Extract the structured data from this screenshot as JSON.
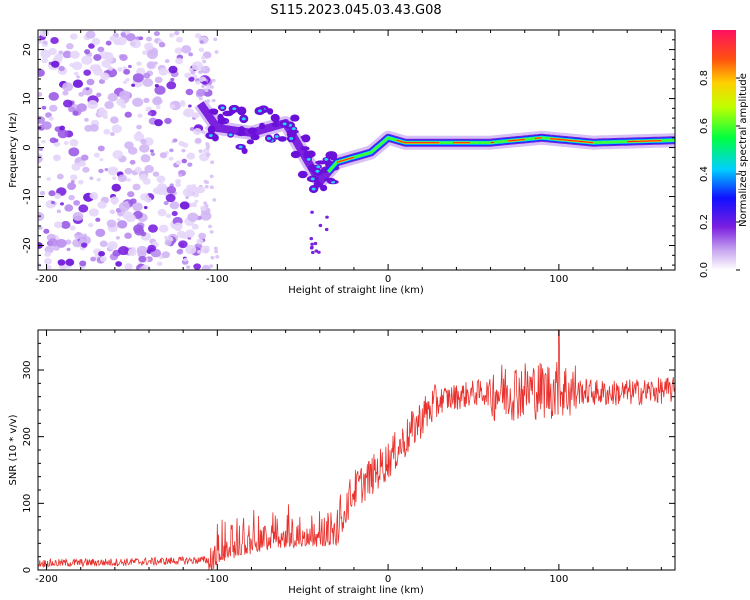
{
  "figure_title": "S115.2023.045.03.43.G08",
  "colors": {
    "snr_line": "#e8302c",
    "axis": "#000000",
    "spec_low": "#6a1be0",
    "spec_high": "#ff2020"
  },
  "chart_data": [
    {
      "type": "heatmap",
      "title": "S115.2023.045.03.43.G08",
      "xlabel": "Height of straight line (km)",
      "ylabel": "Frequency (Hz)",
      "xlim": [
        -205,
        168
      ],
      "ylim": [
        -25,
        24
      ],
      "x_ticks": [
        -200,
        -100,
        0,
        100
      ],
      "y_ticks": [
        -20,
        -10,
        0,
        10,
        20
      ],
      "colorbar": {
        "label": "Normalized spectral amplitude",
        "range": [
          0,
          1
        ],
        "ticks": [
          0.0,
          0.2,
          0.4,
          0.6,
          0.8
        ],
        "tick_labels": [
          "0.0",
          "0.2",
          "0.4",
          "0.6",
          "0.8"
        ]
      },
      "ridge": {
        "description_points_height_km": [
          -110,
          -100,
          -80,
          -60,
          -40,
          -30,
          -20,
          -10,
          0,
          10,
          30,
          60,
          90,
          120,
          168
        ],
        "frequency_hz": [
          9,
          4,
          3,
          5,
          -7,
          -3,
          -2,
          -1,
          2,
          1,
          1,
          1,
          2,
          1,
          1.5
        ]
      }
    },
    {
      "type": "line",
      "xlabel": "Height of straight line (km)",
      "ylabel": "SNR (10 * v/v)",
      "xlim": [
        -205,
        168
      ],
      "ylim": [
        0,
        360
      ],
      "x_ticks": [
        -200,
        -100,
        0,
        100
      ],
      "y_ticks": [
        0,
        100,
        200,
        300
      ],
      "series": [
        {
          "name": "SNR",
          "x": [
            -205,
            -150,
            -105,
            -95,
            -70,
            -50,
            -30,
            -25,
            -20,
            -10,
            0,
            10,
            20,
            30,
            50,
            80,
            100,
            130,
            168
          ],
          "values": [
            10,
            12,
            15,
            40,
            55,
            60,
            60,
            95,
            120,
            140,
            165,
            195,
            230,
            255,
            265,
            270,
            270,
            265,
            270
          ]
        }
      ]
    }
  ]
}
